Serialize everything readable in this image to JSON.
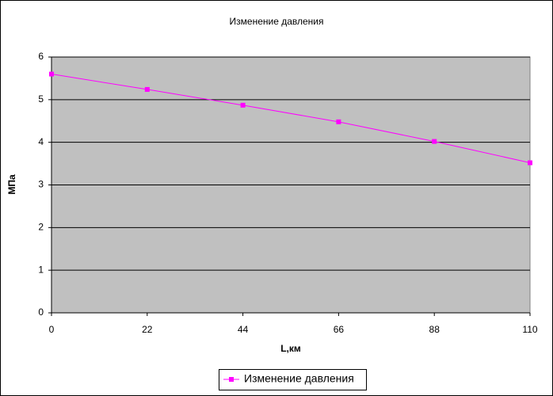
{
  "chart_data": {
    "type": "line",
    "title": "Изменение давления",
    "x_label": "L,км",
    "y_label": "МПа",
    "x": [
      0,
      22,
      44,
      66,
      88,
      110
    ],
    "series": [
      {
        "name": "Изменение давления",
        "color": "#ff00ff",
        "values": [
          5.6,
          5.24,
          4.87,
          4.48,
          4.02,
          3.52
        ]
      }
    ],
    "xlim": [
      0,
      110
    ],
    "xticks": [
      0,
      22,
      44,
      66,
      88,
      110
    ],
    "ylim": [
      0,
      6
    ],
    "yticks": [
      0,
      1,
      2,
      3,
      4,
      5,
      6
    ],
    "grid": true,
    "legend": "bottom"
  }
}
